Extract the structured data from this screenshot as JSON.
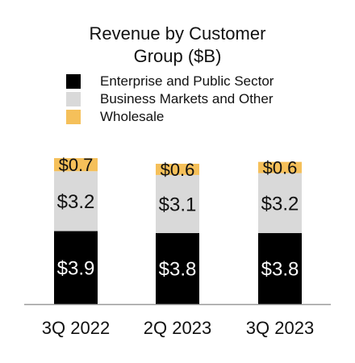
{
  "chart_data": {
    "type": "bar",
    "stacked": true,
    "title": "Revenue by Customer Group ($B)",
    "title_lines": [
      "Revenue by Customer",
      "Group ($B)"
    ],
    "categories": [
      "3Q 2022",
      "2Q 2023",
      "3Q 2023"
    ],
    "series": [
      {
        "name": "Enterprise and Public Sector",
        "values": [
          3.9,
          3.8,
          3.8
        ],
        "labels": [
          "$3.9",
          "$3.8",
          "$3.8"
        ],
        "color": "#000000",
        "label_color": "#ffffff"
      },
      {
        "name": "Business Markets and Other",
        "values": [
          3.2,
          3.1,
          3.2
        ],
        "labels": [
          "$3.2",
          "$3.1",
          "$3.2"
        ],
        "color": "#d9d9d9",
        "label_color": "#111111"
      },
      {
        "name": "Wholesale",
        "values": [
          0.7,
          0.6,
          0.6
        ],
        "labels": [
          "$0.7",
          "$0.6",
          "$0.6"
        ],
        "color": "#f5c05a",
        "label_color": "#111111"
      }
    ],
    "legend_position": "top",
    "grid": false
  }
}
